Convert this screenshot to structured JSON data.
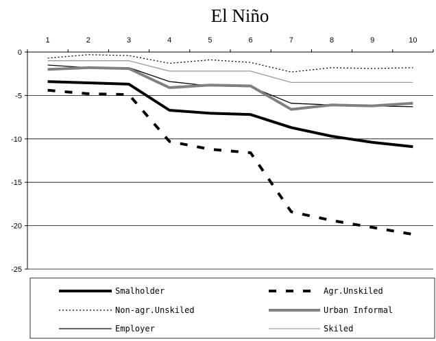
{
  "chart_data": {
    "type": "line",
    "title": "El Niño",
    "x": [
      1,
      2,
      3,
      4,
      5,
      6,
      7,
      8,
      9,
      10
    ],
    "ylim": [
      -25,
      0
    ],
    "yticks": [
      0,
      -5,
      -10,
      -15,
      -20,
      -25
    ],
    "grid": "horizontal",
    "x_axis_position": "top",
    "legend_position": "bottom",
    "series": [
      {
        "name": "Smalholder",
        "values": [
          -3.4,
          -3.55,
          -3.7,
          -6.7,
          -7.05,
          -7.2,
          -8.7,
          -9.7,
          -10.4,
          -10.9
        ],
        "color": "#000000",
        "style": "thick-solid"
      },
      {
        "name": "Agr.Unskiled",
        "values": [
          -4.4,
          -4.8,
          -4.9,
          -10.3,
          -11.2,
          -11.6,
          -18.4,
          -19.4,
          -20.2,
          -21.0
        ],
        "color": "#000000",
        "style": "thick-dashed"
      },
      {
        "name": "Non-agr.Unskiled",
        "values": [
          -0.7,
          -0.3,
          -0.4,
          -1.3,
          -0.9,
          -1.2,
          -2.3,
          -1.8,
          -1.9,
          -1.8
        ],
        "color": "#000000",
        "style": "dotted"
      },
      {
        "name": "Urban Informal",
        "values": [
          -2.0,
          -1.8,
          -1.9,
          -4.1,
          -3.8,
          -3.9,
          -6.6,
          -6.1,
          -6.2,
          -5.9
        ],
        "color": "#808080",
        "style": "thick-solid"
      },
      {
        "name": "Employer",
        "values": [
          -1.5,
          -1.8,
          -1.8,
          -3.4,
          -3.9,
          -4.0,
          -5.9,
          -6.1,
          -6.2,
          -6.3
        ],
        "color": "#000000",
        "style": "thin-solid"
      },
      {
        "name": "Skiled",
        "values": [
          -1.0,
          -1.0,
          -1.0,
          -2.2,
          -2.2,
          -2.2,
          -3.5,
          -3.5,
          -3.5,
          -3.5
        ],
        "color": "#999999",
        "style": "thin-solid"
      }
    ]
  }
}
